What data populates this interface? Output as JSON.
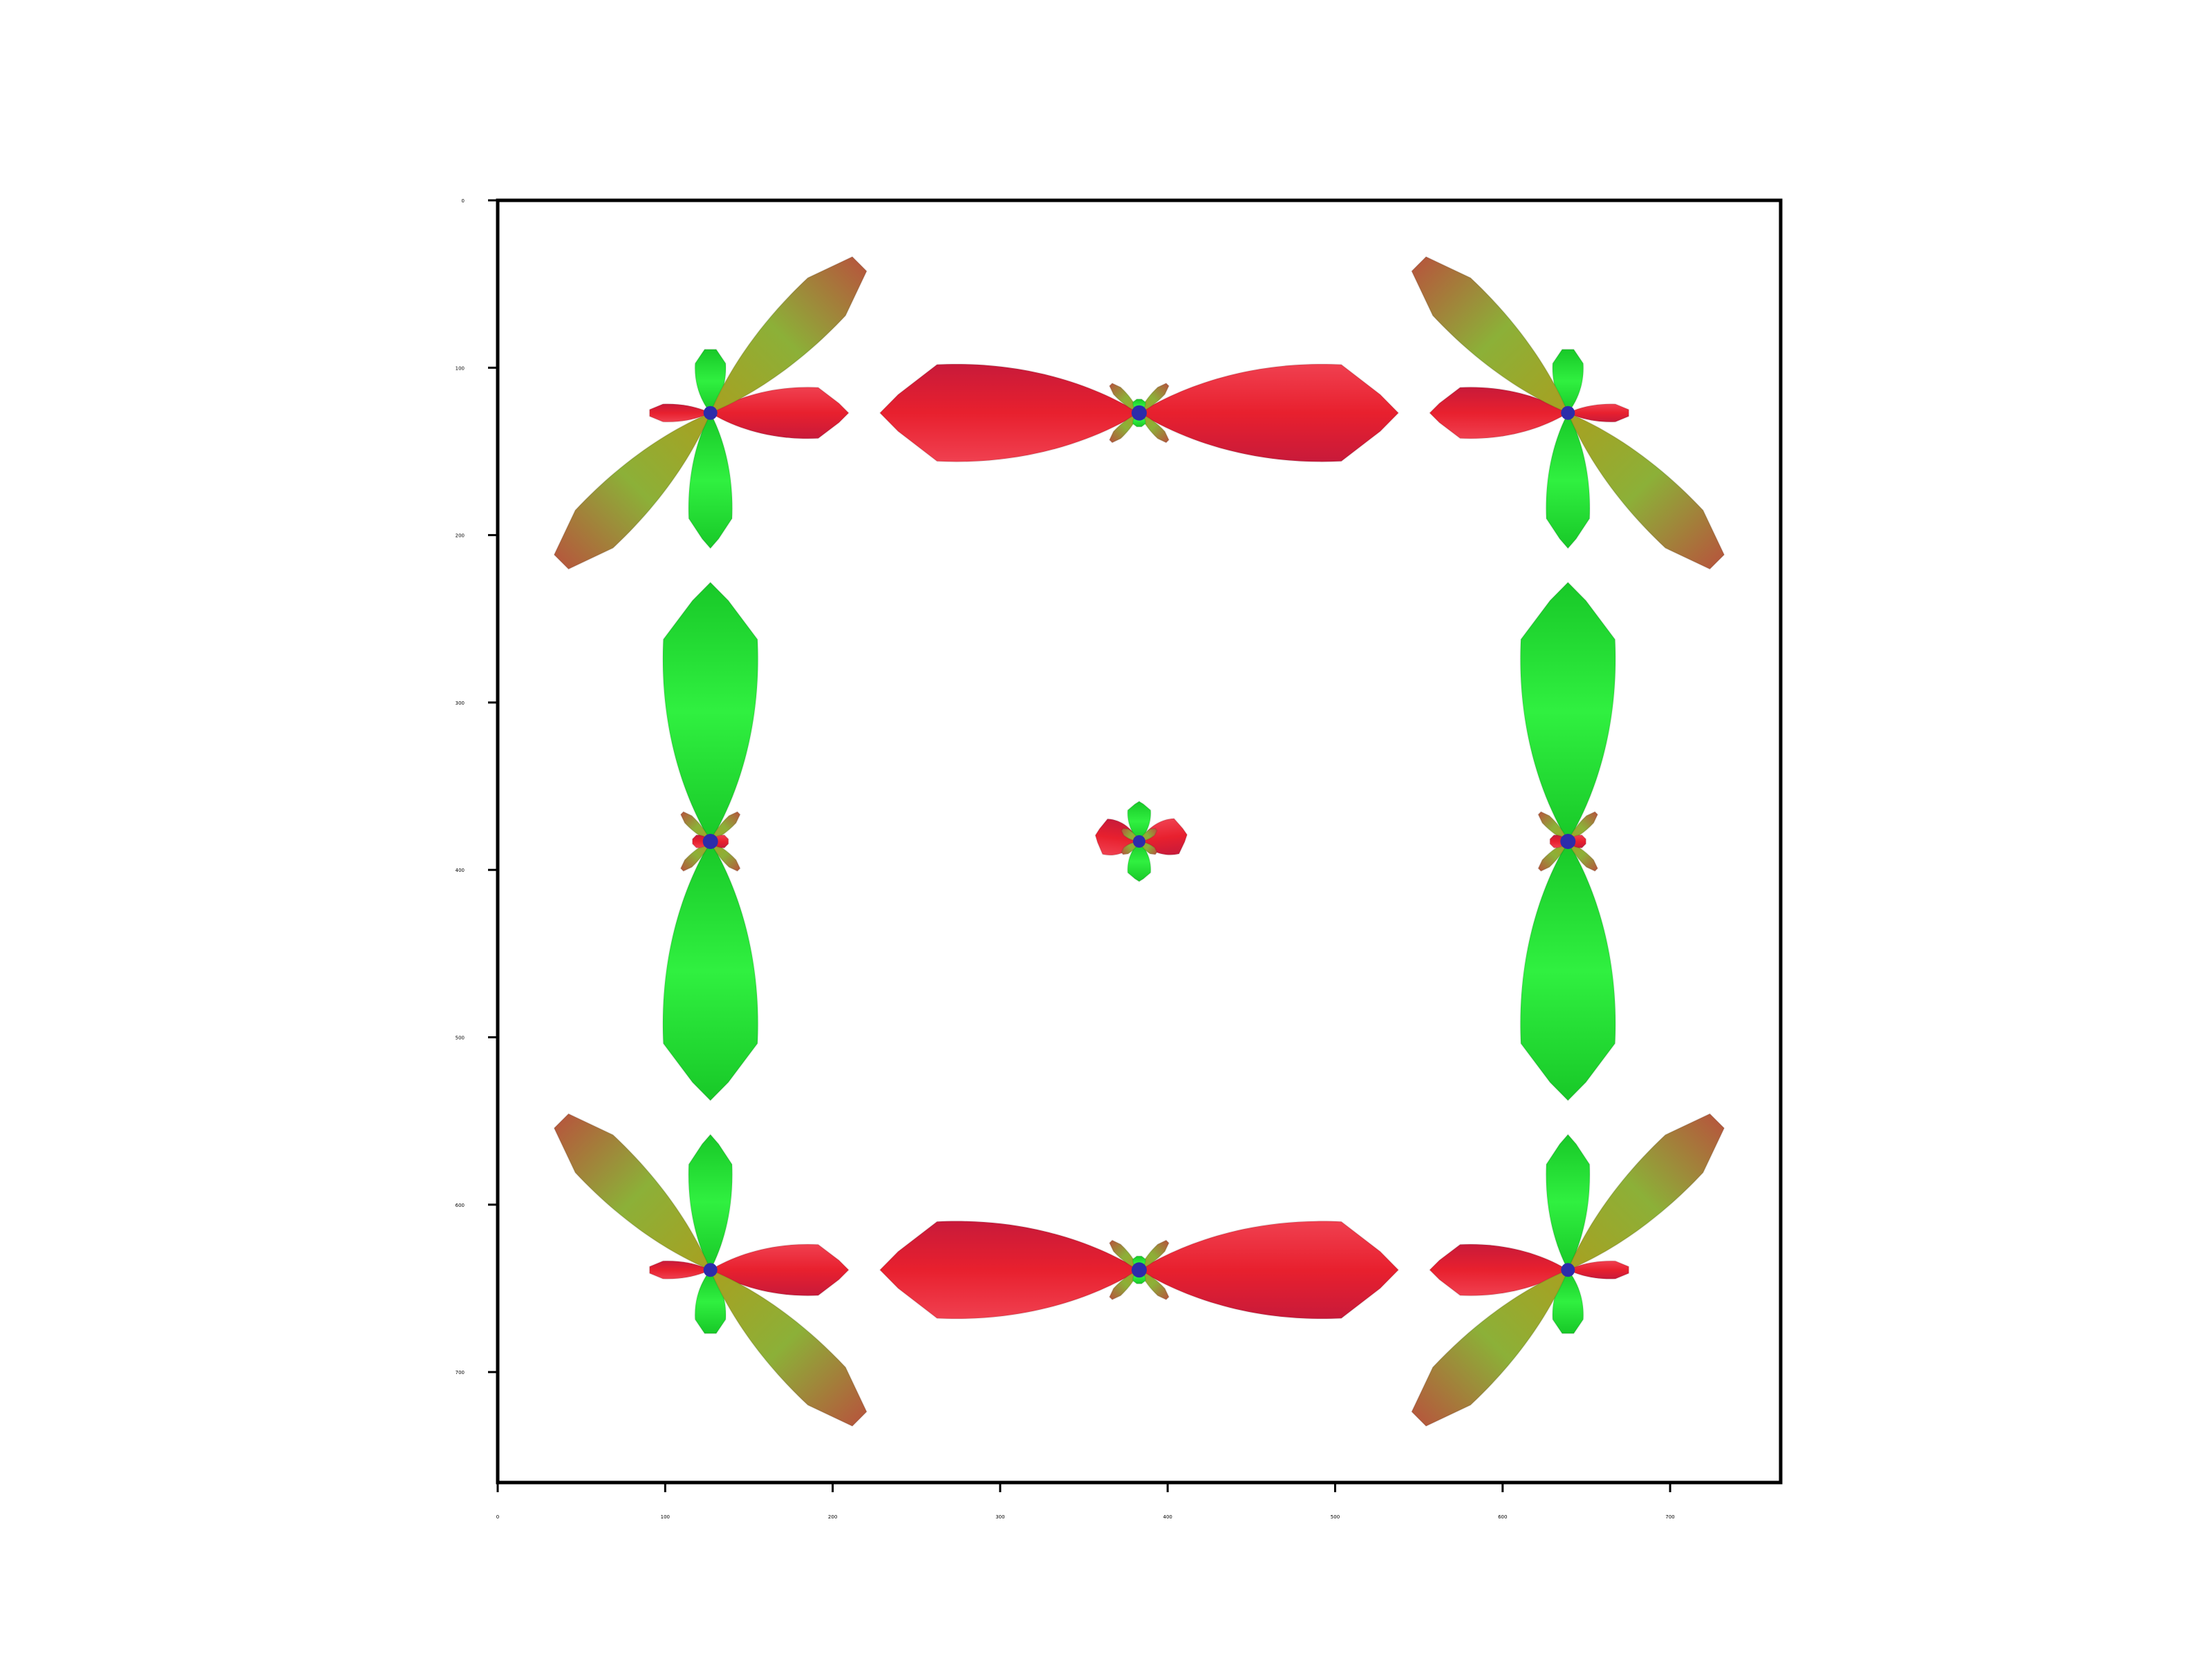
{
  "figure": {
    "background": "#ffffff",
    "axes_color": "#000000",
    "x_ticks": [
      "0",
      "100",
      "200",
      "300",
      "400",
      "500",
      "600",
      "700"
    ],
    "y_ticks": [
      "0",
      "100",
      "200",
      "300",
      "400",
      "500",
      "600",
      "700"
    ],
    "xlim": [
      0,
      766
    ],
    "ylim": [
      0,
      766
    ],
    "y_axis_inverted": true,
    "glyph_colors": {
      "horizontal_lobe": "#e8202e",
      "vertical_lobe": "#1ee82a",
      "diagonal_lobe": "#9a9a2e",
      "center": "#2c2caa"
    },
    "glyph_centers": [
      {
        "x": 127,
        "y": 127,
        "type": "corner"
      },
      {
        "x": 383,
        "y": 127,
        "type": "horizontal-edge"
      },
      {
        "x": 639,
        "y": 127,
        "type": "corner"
      },
      {
        "x": 127,
        "y": 383,
        "type": "vertical-edge"
      },
      {
        "x": 383,
        "y": 383,
        "type": "center"
      },
      {
        "x": 639,
        "y": 383,
        "type": "vertical-edge"
      },
      {
        "x": 127,
        "y": 639,
        "type": "corner"
      },
      {
        "x": 383,
        "y": 639,
        "type": "horizontal-edge"
      },
      {
        "x": 639,
        "y": 639,
        "type": "corner"
      }
    ]
  }
}
